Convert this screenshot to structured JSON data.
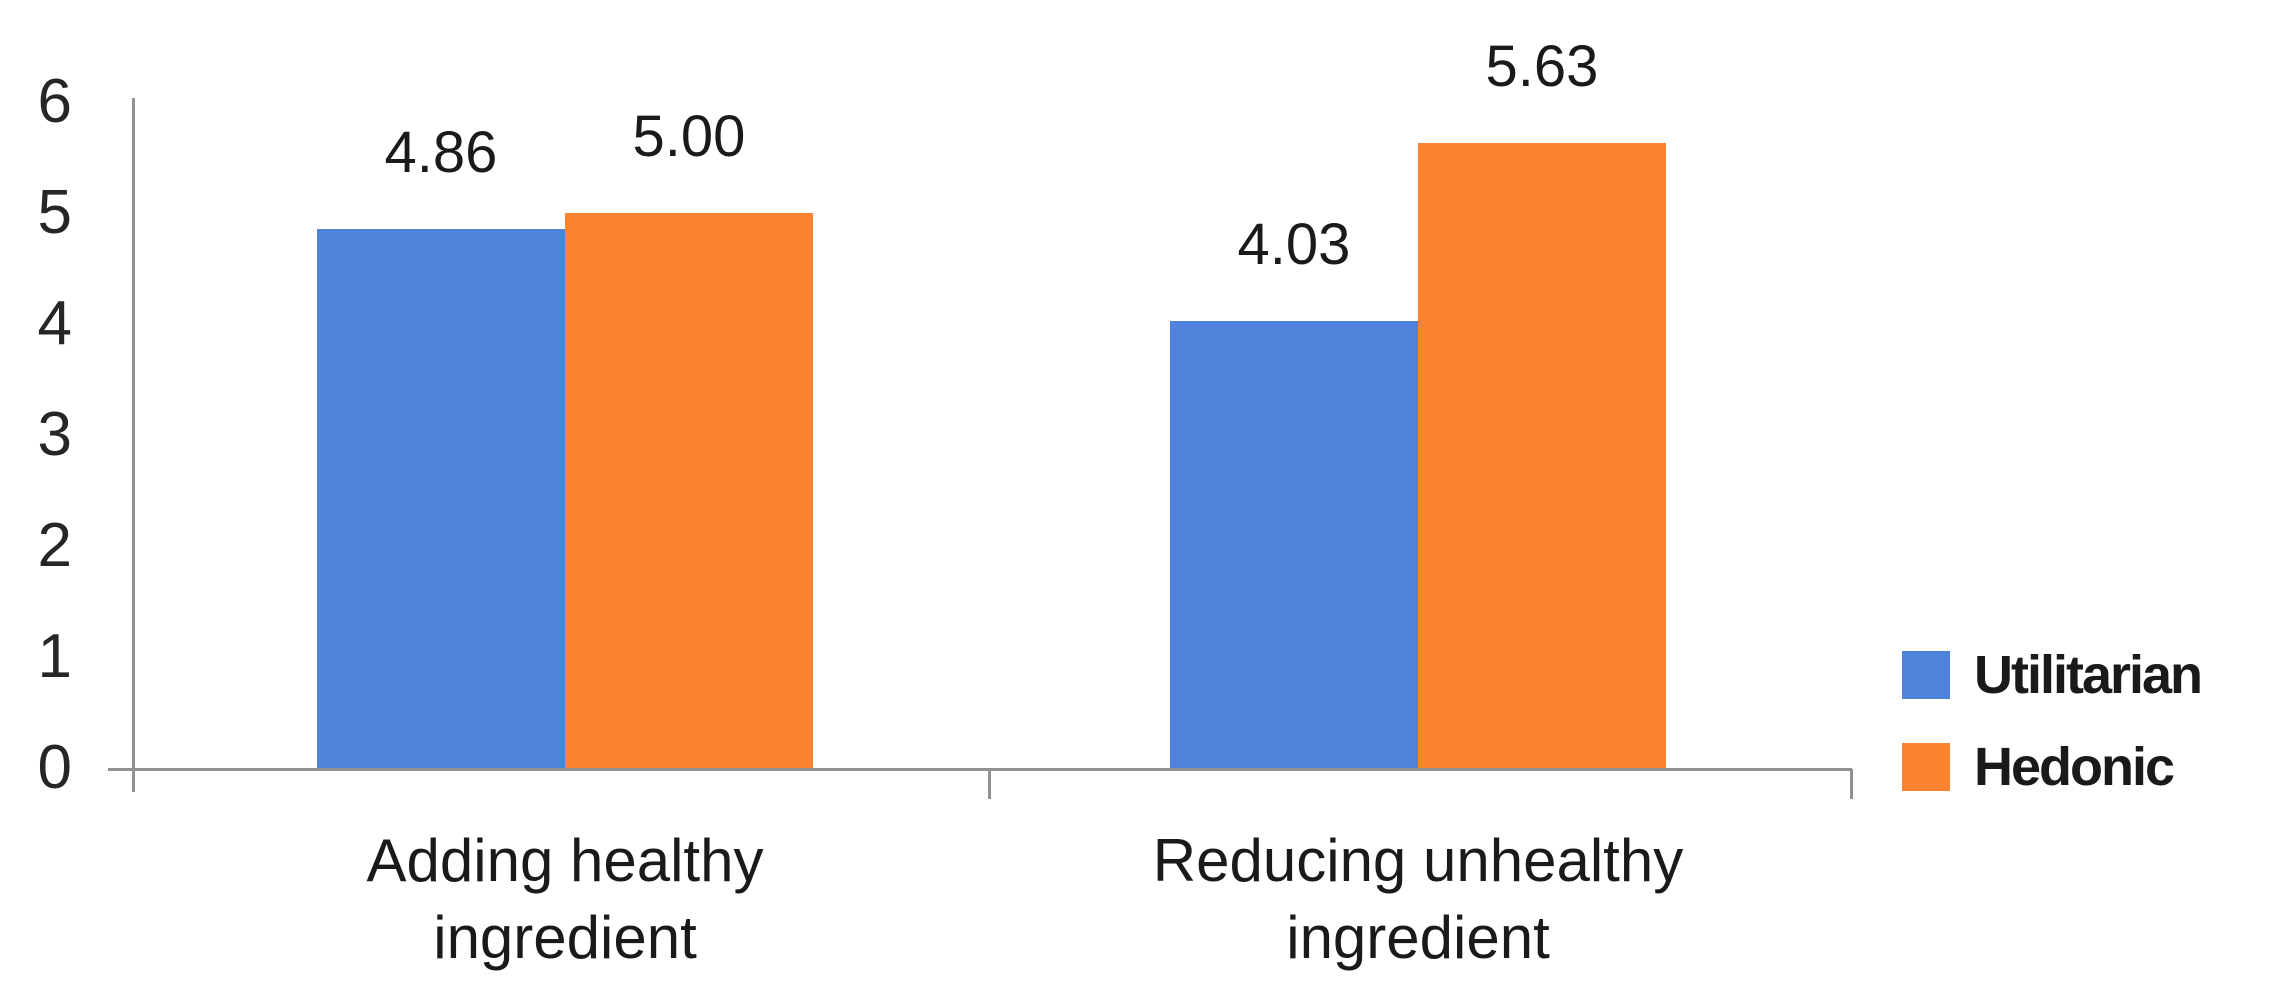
{
  "chart_data": {
    "type": "bar",
    "title": "",
    "categories": [
      "Adding healthy\ningredient",
      "Reducing unhealthy\ningredient"
    ],
    "series": [
      {
        "name": "Utilitarian",
        "color": "#4E82DB",
        "values": [
          4.86,
          4.03
        ],
        "data_labels": [
          "4.86",
          "4.03"
        ]
      },
      {
        "name": "Hedonic",
        "color": "#FC8330",
        "values": [
          5.0,
          5.63
        ],
        "data_labels": [
          "5.00",
          "5.63"
        ]
      }
    ],
    "y_axis": {
      "min": 0,
      "max": 6,
      "tick_interval": 1,
      "tick_labels": [
        "0",
        "1",
        "2",
        "3",
        "4",
        "5",
        "6"
      ]
    },
    "x_axis": {
      "label": ""
    },
    "legend": {
      "position": "right",
      "entries": [
        "Utilitarian",
        "Hedonic"
      ]
    },
    "grid": false,
    "colors": {
      "axis": "#919191",
      "text": "#1a1a1a",
      "background": "#ffffff"
    }
  }
}
